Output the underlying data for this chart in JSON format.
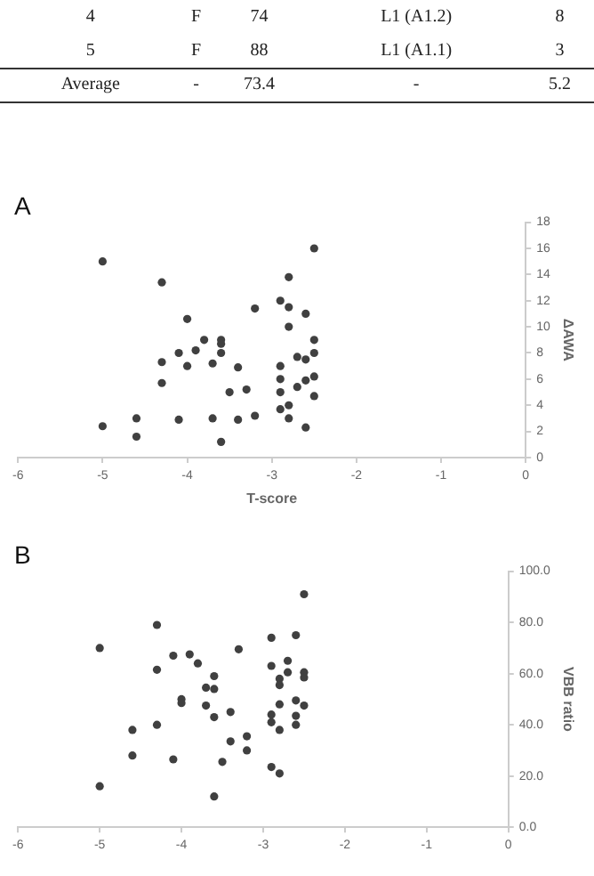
{
  "chart_data": [
    {
      "type": "other",
      "annotations": [
        "4",
        "F",
        "74",
        "L1  (A1.2)",
        "8",
        "5",
        "F",
        "88",
        "L1  (A1.1)",
        "3",
        "Average",
        "-",
        "73.4",
        "-",
        "5.2"
      ]
    },
    {
      "type": "scatter",
      "title": "A",
      "xlabel": "T-score",
      "ylabel": "ΔAWA",
      "marker": "circle",
      "grid": false,
      "legend": false,
      "xlim": [
        -6,
        0
      ],
      "xticks": [
        -6,
        -5,
        -4,
        -3,
        -2,
        -1,
        0
      ],
      "ylim": [
        0,
        18
      ],
      "yticks": [
        0,
        2,
        4,
        6,
        8,
        10,
        12,
        14,
        16,
        18
      ],
      "x": [
        -5,
        -5,
        -4.3,
        -4.3,
        -4.3,
        -4.6,
        -4.6,
        -4.1,
        -4.1,
        -4,
        -4,
        -3.9,
        -3.8,
        -3.7,
        -3.7,
        -3.6,
        -3.6,
        -3.6,
        -3.6,
        -3.5,
        -3.4,
        -3.4,
        -3.3,
        -3.2,
        -3.2,
        -2.9,
        -2.9,
        -2.9,
        -2.9,
        -2.9,
        -2.8,
        -2.8,
        -2.8,
        -2.8,
        -2.8,
        -2.7,
        -2.7,
        -2.6,
        -2.6,
        -2.6,
        -2.6,
        -2.5,
        -2.5,
        -2.5,
        -2.5,
        -2.5
      ],
      "series": [
        {
          "color": "#404040",
          "values": [
            15,
            2.4,
            13.4,
            7.3,
            5.7,
            3,
            1.6,
            8,
            2.9,
            10.6,
            7,
            8.2,
            9,
            7.2,
            3,
            9,
            8.7,
            8,
            1.2,
            5,
            6.9,
            2.9,
            5.2,
            11.4,
            3.2,
            12,
            7,
            6,
            5,
            3.7,
            13.8,
            11.5,
            10,
            4,
            3,
            7.7,
            5.4,
            11,
            7.5,
            5.9,
            2.3,
            16,
            9,
            8,
            6.2,
            4.7
          ]
        }
      ]
    },
    {
      "type": "scatter",
      "title": "B",
      "ylabel": "VBB ratio",
      "marker": "circle",
      "grid": false,
      "legend": false,
      "xlim": [
        -6,
        0
      ],
      "xticks": [
        -6,
        -5,
        -4,
        -3,
        -2,
        -1,
        0
      ],
      "ylim": [
        0,
        100
      ],
      "yticks": [
        {
          "value": 0,
          "label": "0.0"
        },
        {
          "value": 20,
          "label": "20.0"
        },
        {
          "value": 40,
          "label": "40.0"
        },
        {
          "value": 60,
          "label": "60.0"
        },
        {
          "value": 80,
          "label": "80.0"
        },
        {
          "value": 100,
          "label": "100.0"
        }
      ],
      "x": [
        -5,
        -5,
        -4.3,
        -4.3,
        -4.3,
        -4.6,
        -4.6,
        -4.1,
        -4.1,
        -4,
        -4,
        -3.9,
        -3.8,
        -3.7,
        -3.7,
        -3.6,
        -3.6,
        -3.6,
        -3.6,
        -3.5,
        -3.4,
        -3.4,
        -3.3,
        -3.2,
        -3.2,
        -2.9,
        -2.9,
        -2.9,
        -2.9,
        -2.9,
        -2.8,
        -2.8,
        -2.8,
        -2.8,
        -2.8,
        -2.7,
        -2.7,
        -2.6,
        -2.6,
        -2.6,
        -2.6,
        -2.5,
        -2.5,
        -2.5,
        -2.5
      ],
      "series": [
        {
          "color": "#404040",
          "values": [
            70,
            16,
            79,
            61.5,
            40,
            38,
            28,
            67,
            26.5,
            50,
            48.5,
            67.5,
            64,
            54.5,
            47.5,
            59,
            54,
            43,
            12,
            25.5,
            45,
            33.5,
            69.5,
            35.5,
            30,
            74,
            63,
            44,
            41,
            23.5,
            58,
            55.5,
            48,
            38,
            21,
            65,
            60.5,
            75,
            49.5,
            43.5,
            40,
            91,
            60.5,
            58.5,
            47.5
          ]
        }
      ]
    }
  ]
}
